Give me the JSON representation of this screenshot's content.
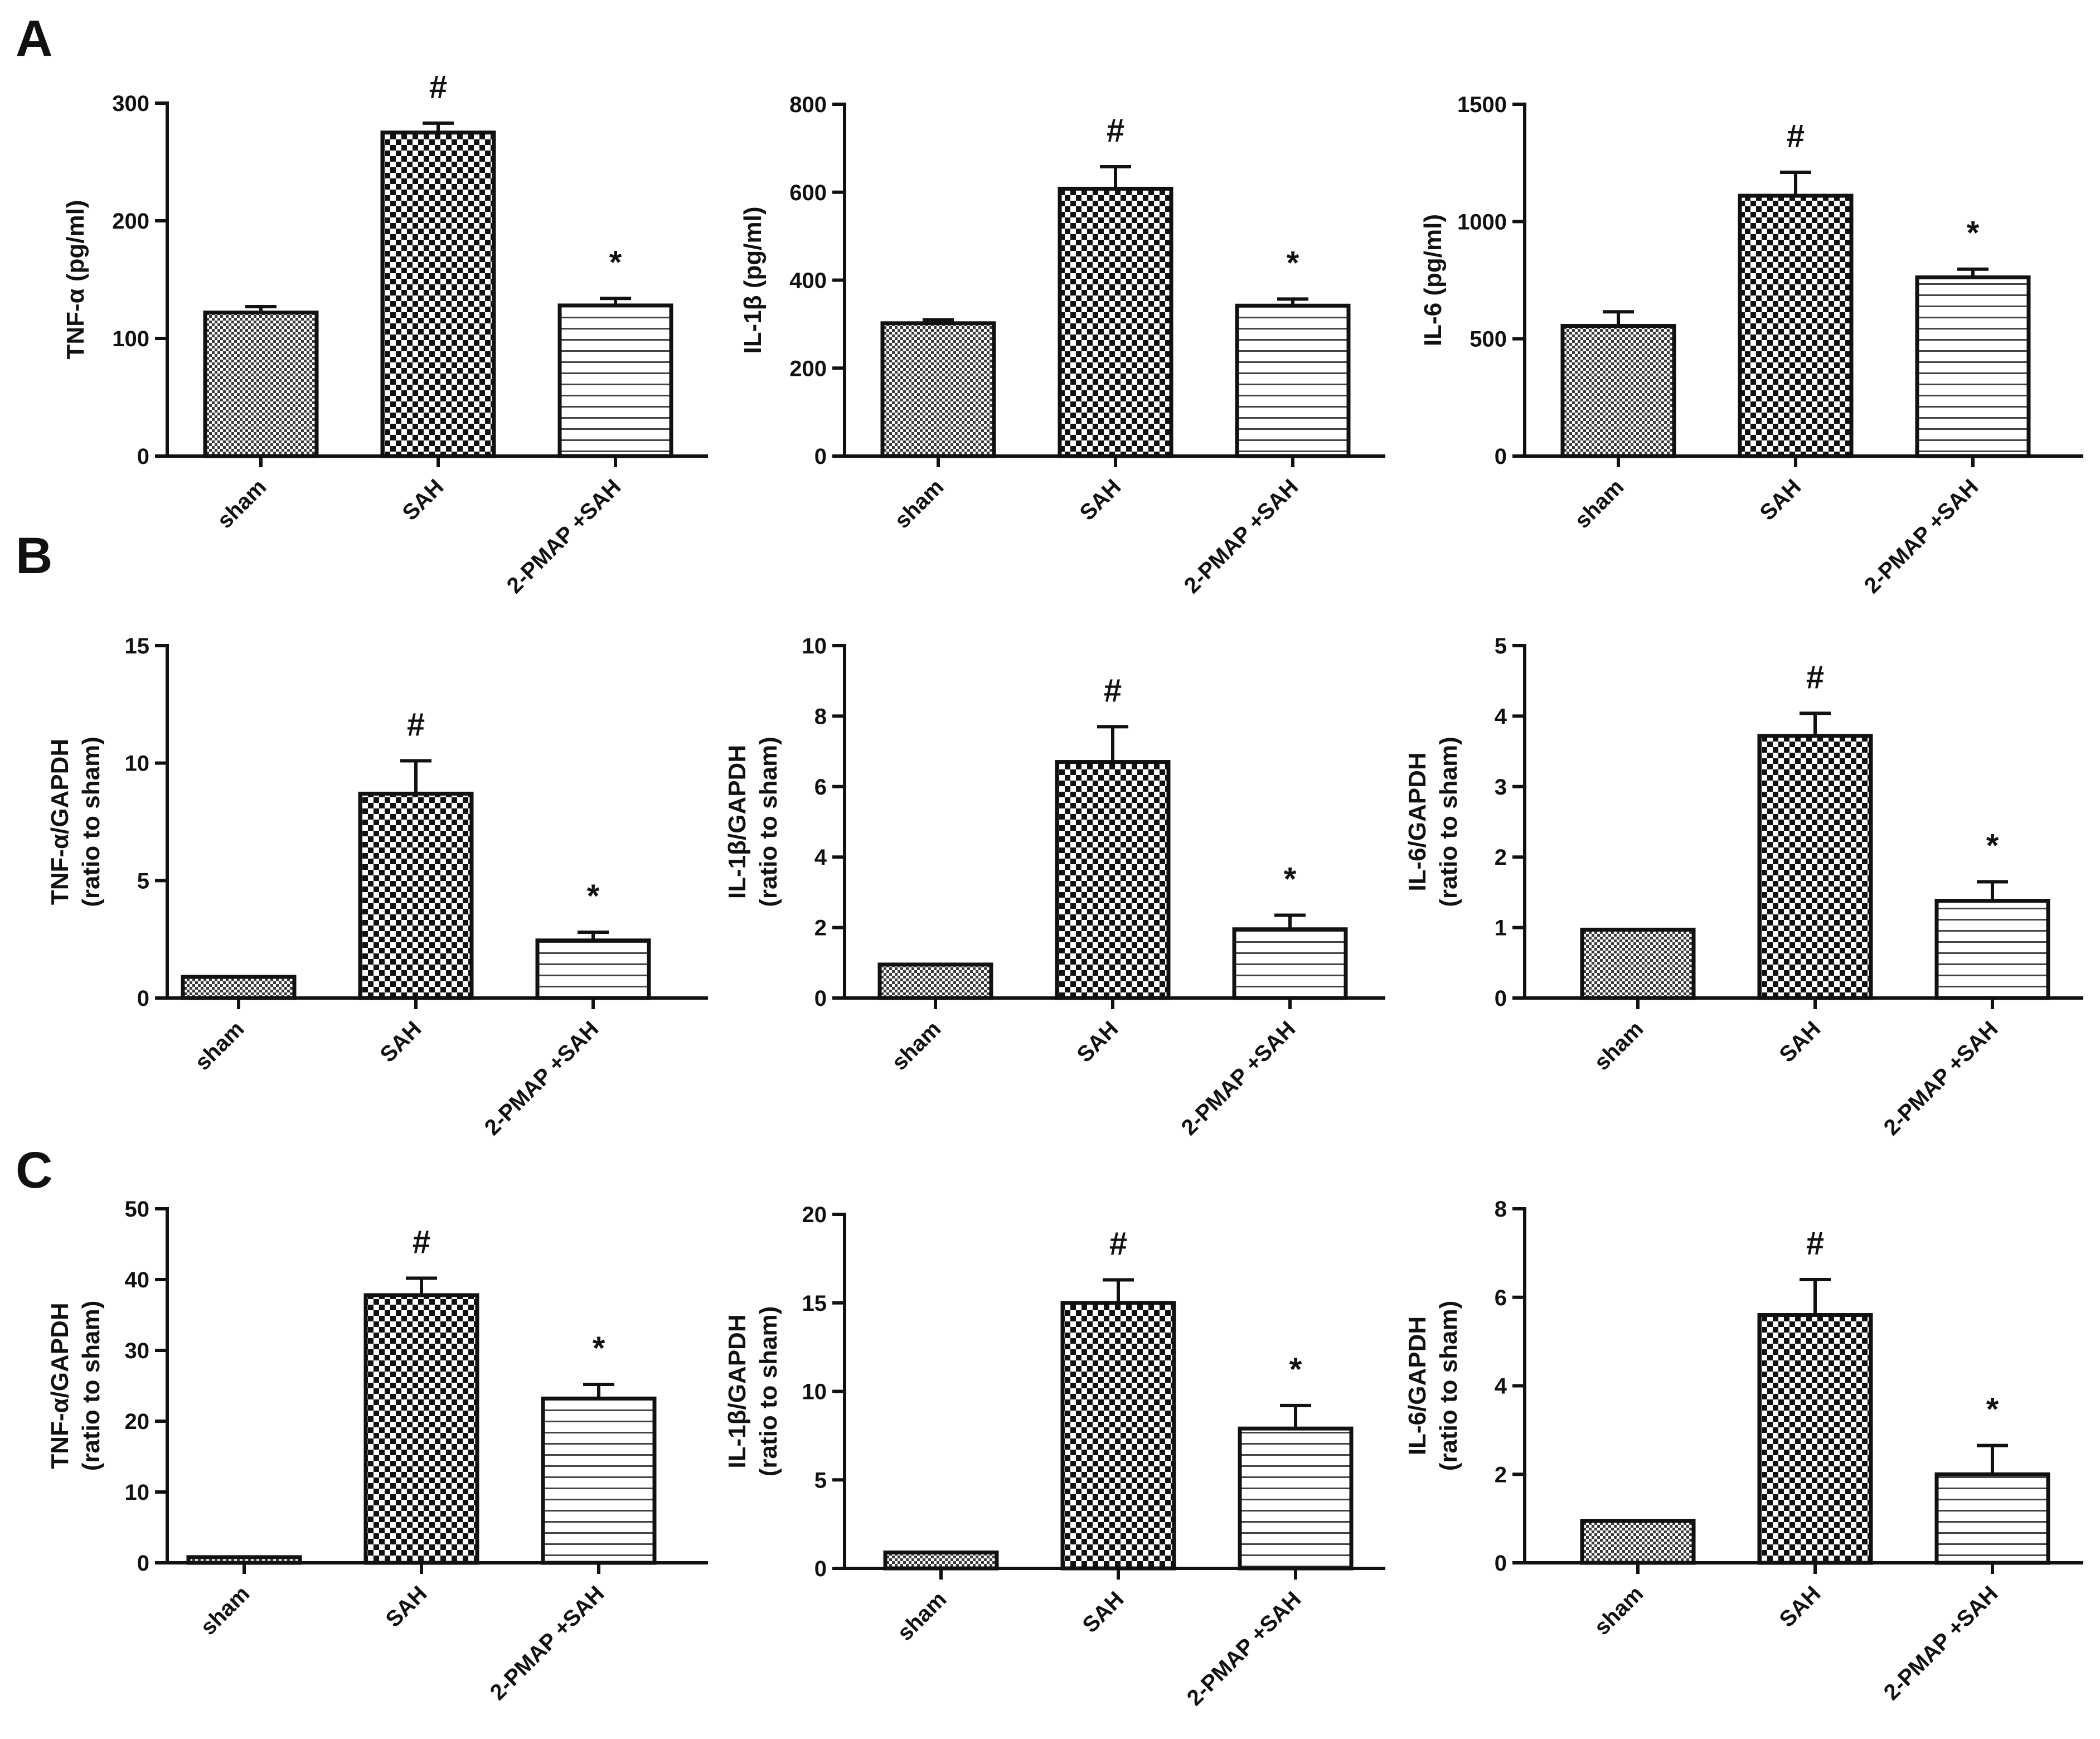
{
  "panels": [
    {
      "letter": "A"
    },
    {
      "letter": "B"
    },
    {
      "letter": "C"
    }
  ],
  "colors": {
    "ink": "#111111",
    "background": "#ffffff"
  },
  "chart_data": [
    {
      "type": "bar",
      "panel": "A",
      "ylabel": [
        "TNF-α (pg/ml)"
      ],
      "categories": [
        "sham",
        "SAH",
        "2-PMAP +SAH"
      ],
      "patterns": [
        "fine-check",
        "coarse-check",
        "h-lines"
      ],
      "values": [
        122,
        275,
        128
      ],
      "errors": [
        5,
        8,
        6
      ],
      "sig_marks": [
        "",
        "#",
        "*"
      ],
      "ylim": [
        0,
        300
      ],
      "yticks": [
        0,
        100,
        200,
        300
      ],
      "ytick_labels": [
        "0",
        "100",
        "200",
        "300"
      ]
    },
    {
      "type": "bar",
      "panel": "A",
      "ylabel": [
        "IL-1β (pg/ml)"
      ],
      "categories": [
        "sham",
        "SAH",
        "2-PMAP +SAH"
      ],
      "patterns": [
        "fine-check",
        "coarse-check",
        "h-lines"
      ],
      "values": [
        302,
        608,
        342
      ],
      "errors": [
        8,
        50,
        15
      ],
      "sig_marks": [
        "",
        "#",
        "*"
      ],
      "ylim": [
        0,
        800
      ],
      "yticks": [
        0,
        200,
        400,
        600,
        800
      ],
      "ytick_labels": [
        "0",
        "200",
        "400",
        "600",
        "800"
      ]
    },
    {
      "type": "bar",
      "panel": "A",
      "ylabel": [
        "IL-6 (pg/ml)"
      ],
      "categories": [
        "sham",
        "SAH",
        "2-PMAP +SAH"
      ],
      "patterns": [
        "fine-check",
        "coarse-check",
        "h-lines"
      ],
      "values": [
        555,
        1110,
        762
      ],
      "errors": [
        60,
        100,
        35
      ],
      "sig_marks": [
        "",
        "#",
        "*"
      ],
      "ylim": [
        0,
        1500
      ],
      "yticks": [
        0,
        500,
        1000,
        1500
      ],
      "ytick_labels": [
        "0",
        "500",
        "1000",
        "1500"
      ]
    },
    {
      "type": "bar",
      "panel": "B",
      "ylabel": [
        "TNF-α/GAPDH",
        "(ratio to sham)"
      ],
      "categories": [
        "sham",
        "SAH",
        "2-PMAP +SAH"
      ],
      "patterns": [
        "fine-check",
        "coarse-check",
        "h-lines"
      ],
      "values": [
        0.9,
        8.7,
        2.45
      ],
      "errors": [
        0,
        1.4,
        0.35
      ],
      "sig_marks": [
        "",
        "#",
        "*"
      ],
      "ylim": [
        0,
        15
      ],
      "yticks": [
        0,
        5,
        10,
        15
      ],
      "ytick_labels": [
        "0",
        "5",
        "10",
        "15"
      ]
    },
    {
      "type": "bar",
      "panel": "B",
      "ylabel": [
        "IL-1β/GAPDH",
        "(ratio to sham)"
      ],
      "categories": [
        "sham",
        "SAH",
        "2-PMAP +SAH"
      ],
      "patterns": [
        "fine-check",
        "coarse-check",
        "h-lines"
      ],
      "values": [
        0.95,
        6.7,
        1.95
      ],
      "errors": [
        0,
        1.0,
        0.4
      ],
      "sig_marks": [
        "",
        "#",
        "*"
      ],
      "ylim": [
        0,
        10
      ],
      "yticks": [
        0,
        2,
        4,
        6,
        8,
        10
      ],
      "ytick_labels": [
        "0",
        "2",
        "4",
        "6",
        "8",
        "10"
      ]
    },
    {
      "type": "bar",
      "panel": "B",
      "ylabel": [
        "IL-6/GAPDH",
        "(ratio to sham)"
      ],
      "categories": [
        "sham",
        "SAH",
        "2-PMAP +SAH"
      ],
      "patterns": [
        "fine-check",
        "coarse-check",
        "h-lines"
      ],
      "values": [
        0.97,
        3.72,
        1.38
      ],
      "errors": [
        0,
        0.32,
        0.27
      ],
      "sig_marks": [
        "",
        "#",
        "*"
      ],
      "ylim": [
        0,
        5
      ],
      "yticks": [
        0,
        1,
        2,
        3,
        4,
        5
      ],
      "ytick_labels": [
        "0",
        "1",
        "2",
        "3",
        "4",
        "5"
      ]
    },
    {
      "type": "bar",
      "panel": "C",
      "ylabel": [
        "TNF-α/GAPDH",
        "(ratio to sham)"
      ],
      "categories": [
        "sham",
        "SAH",
        "2-PMAP +SAH"
      ],
      "patterns": [
        "fine-check",
        "coarse-check",
        "h-lines"
      ],
      "values": [
        0.8,
        37.8,
        23.2
      ],
      "errors": [
        0,
        2.4,
        2.0
      ],
      "sig_marks": [
        "",
        "#",
        "*"
      ],
      "ylim": [
        0,
        50
      ],
      "yticks": [
        0,
        10,
        20,
        30,
        40,
        50
      ],
      "ytick_labels": [
        "0",
        "10",
        "20",
        "30",
        "40",
        "50"
      ]
    },
    {
      "type": "bar",
      "panel": "C",
      "ylabel": [
        "IL-1β/GAPDH",
        "(ratio to sham)"
      ],
      "categories": [
        "sham",
        "SAH",
        "2-PMAP +SAH"
      ],
      "patterns": [
        "fine-check",
        "coarse-check",
        "h-lines"
      ],
      "values": [
        0.9,
        15.0,
        7.9
      ],
      "errors": [
        0,
        1.3,
        1.3
      ],
      "sig_marks": [
        "",
        "#",
        "*"
      ],
      "ylim": [
        0,
        20
      ],
      "yticks": [
        0,
        5,
        10,
        15,
        20
      ],
      "ytick_labels": [
        "0",
        "5",
        "10",
        "15",
        "20"
      ]
    },
    {
      "type": "bar",
      "panel": "C",
      "ylabel": [
        "IL-6/GAPDH",
        "(ratio to sham)"
      ],
      "categories": [
        "sham",
        "SAH",
        "2-PMAP +SAH"
      ],
      "patterns": [
        "fine-check",
        "coarse-check",
        "h-lines"
      ],
      "values": [
        0.95,
        5.6,
        2.0
      ],
      "errors": [
        0,
        0.8,
        0.65
      ],
      "sig_marks": [
        "",
        "#",
        "*"
      ],
      "ylim": [
        0,
        8
      ],
      "yticks": [
        0,
        2,
        4,
        6,
        8
      ],
      "ytick_labels": [
        "0",
        "2",
        "4",
        "6",
        "8"
      ]
    }
  ]
}
